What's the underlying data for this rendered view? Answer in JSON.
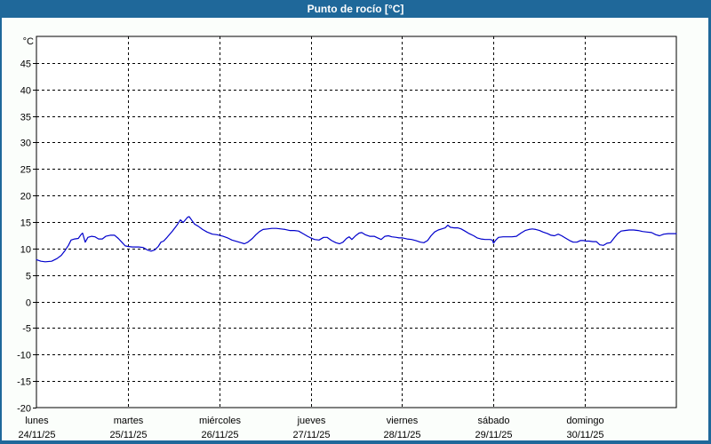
{
  "window": {
    "title": "Punto de rocío [°C]"
  },
  "colors": {
    "title_bar_bg": "#1f689a",
    "title_text": "#ffffff",
    "panel_bg": "#fbfefb",
    "plot_bg": "#ffffff",
    "axis_frame": "#000000",
    "gridline": "#000000",
    "line": "#0000cc",
    "label_text": "#000000"
  },
  "chart_data": {
    "type": "line",
    "title": "Punto de rocío [°C]",
    "ylabel": "°C",
    "unit_label": "°C",
    "ylim": [
      -20,
      50
    ],
    "xlim_hours": [
      0,
      168
    ],
    "grid": true,
    "legend": "none",
    "y_ticks": [
      45,
      40,
      35,
      30,
      25,
      20,
      15,
      10,
      5,
      0,
      -5,
      -10,
      -15,
      -20
    ],
    "x_days": [
      {
        "name": "lunes",
        "date": "24/11/25"
      },
      {
        "name": "martes",
        "date": "25/11/25"
      },
      {
        "name": "miércoles",
        "date": "26/11/25"
      },
      {
        "name": "jueves",
        "date": "27/11/25"
      },
      {
        "name": "viernes",
        "date": "28/11/25"
      },
      {
        "name": "sábado",
        "date": "29/11/25"
      },
      {
        "name": "domingo",
        "date": "30/11/25"
      }
    ],
    "series": [
      {
        "name": "Punto de rocío",
        "color": "#0000cc",
        "points_hours_degC": [
          [
            0,
            7.9
          ],
          [
            1.2,
            7.6
          ],
          [
            2.3,
            7.5
          ],
          [
            4,
            7.6
          ],
          [
            5.4,
            8.1
          ],
          [
            6.5,
            8.7
          ],
          [
            7.5,
            9.6
          ],
          [
            8.4,
            10.6
          ],
          [
            9.1,
            11.6
          ],
          [
            10,
            11.8
          ],
          [
            11,
            11.9
          ],
          [
            11.7,
            12.6
          ],
          [
            12.1,
            12.9
          ],
          [
            12.8,
            11.2
          ],
          [
            13.5,
            12.1
          ],
          [
            14.5,
            12.3
          ],
          [
            15.4,
            12.2
          ],
          [
            16.3,
            11.8
          ],
          [
            17.3,
            11.8
          ],
          [
            18.2,
            12.3
          ],
          [
            19.4,
            12.5
          ],
          [
            20.5,
            12.5
          ],
          [
            21.5,
            11.9
          ],
          [
            22.4,
            11.2
          ],
          [
            23.3,
            10.5
          ],
          [
            24,
            10.4
          ],
          [
            25.2,
            10.3
          ],
          [
            26.8,
            10.3
          ],
          [
            28,
            10.2
          ],
          [
            29.2,
            9.7
          ],
          [
            30.1,
            9.5
          ],
          [
            31,
            9.7
          ],
          [
            32,
            10.4
          ],
          [
            32.7,
            11.2
          ],
          [
            33.4,
            11.4
          ],
          [
            34.3,
            12.1
          ],
          [
            35.7,
            13.3
          ],
          [
            36.9,
            14.4
          ],
          [
            37.8,
            15.4
          ],
          [
            38.5,
            14.9
          ],
          [
            39.7,
            15.9
          ],
          [
            40.1,
            16.0
          ],
          [
            40.8,
            15.3
          ],
          [
            41.5,
            14.6
          ],
          [
            42.5,
            14.2
          ],
          [
            43.6,
            13.6
          ],
          [
            44.8,
            13.1
          ],
          [
            46.2,
            12.7
          ],
          [
            47.4,
            12.6
          ],
          [
            48,
            12.5
          ],
          [
            49,
            12.3
          ],
          [
            50.2,
            12.0
          ],
          [
            51.3,
            11.6
          ],
          [
            52.7,
            11.3
          ],
          [
            53.7,
            11.1
          ],
          [
            54.6,
            10.9
          ],
          [
            55.5,
            11.2
          ],
          [
            56.7,
            11.9
          ],
          [
            57.6,
            12.6
          ],
          [
            58.6,
            13.2
          ],
          [
            59.5,
            13.6
          ],
          [
            60.7,
            13.7
          ],
          [
            61.8,
            13.8
          ],
          [
            63,
            13.8
          ],
          [
            64.2,
            13.7
          ],
          [
            65.3,
            13.6
          ],
          [
            66.5,
            13.4
          ],
          [
            67.7,
            13.4
          ],
          [
            68.8,
            13.3
          ],
          [
            70,
            12.8
          ],
          [
            71.2,
            12.3
          ],
          [
            72,
            12.0
          ],
          [
            73,
            11.7
          ],
          [
            74.2,
            11.6
          ],
          [
            75.4,
            12.1
          ],
          [
            76.3,
            12.1
          ],
          [
            77.5,
            11.5
          ],
          [
            78.6,
            11.1
          ],
          [
            79.6,
            10.9
          ],
          [
            80.5,
            11.2
          ],
          [
            81.4,
            11.9
          ],
          [
            82.1,
            12.2
          ],
          [
            82.8,
            11.7
          ],
          [
            83.8,
            12.4
          ],
          [
            84.7,
            12.9
          ],
          [
            85.4,
            13.0
          ],
          [
            86.3,
            12.6
          ],
          [
            87.5,
            12.3
          ],
          [
            88.7,
            12.3
          ],
          [
            89.6,
            12.0
          ],
          [
            90.5,
            11.7
          ],
          [
            91.5,
            12.3
          ],
          [
            92.4,
            12.4
          ],
          [
            93.3,
            12.2
          ],
          [
            94.5,
            12.1
          ],
          [
            95.2,
            12.0
          ],
          [
            96.1,
            12.0
          ],
          [
            97.3,
            11.8
          ],
          [
            98.5,
            11.7
          ],
          [
            99.6,
            11.5
          ],
          [
            100.8,
            11.2
          ],
          [
            101.7,
            11.1
          ],
          [
            102.7,
            11.5
          ],
          [
            103.6,
            12.4
          ],
          [
            104.5,
            13.1
          ],
          [
            105.5,
            13.5
          ],
          [
            106.4,
            13.7
          ],
          [
            107.3,
            13.9
          ],
          [
            108,
            14.4
          ],
          [
            108.7,
            14.0
          ],
          [
            109.7,
            13.9
          ],
          [
            110.6,
            13.9
          ],
          [
            111.5,
            13.7
          ],
          [
            112.5,
            13.3
          ],
          [
            113.6,
            12.8
          ],
          [
            114.8,
            12.4
          ],
          [
            115.7,
            12.0
          ],
          [
            116.7,
            11.8
          ],
          [
            117.8,
            11.7
          ],
          [
            119,
            11.7
          ],
          [
            119.7,
            11.6
          ],
          [
            120,
            11.0
          ],
          [
            120.6,
            11.6
          ],
          [
            121.3,
            12.1
          ],
          [
            122.5,
            12.2
          ],
          [
            123.7,
            12.2
          ],
          [
            124.8,
            12.2
          ],
          [
            126,
            12.3
          ],
          [
            127.2,
            12.9
          ],
          [
            128.3,
            13.4
          ],
          [
            129.3,
            13.6
          ],
          [
            130.2,
            13.7
          ],
          [
            131.1,
            13.6
          ],
          [
            132.1,
            13.4
          ],
          [
            133,
            13.1
          ],
          [
            134.2,
            12.8
          ],
          [
            135.1,
            12.5
          ],
          [
            136,
            12.4
          ],
          [
            137,
            12.7
          ],
          [
            137.9,
            12.4
          ],
          [
            138.8,
            12.0
          ],
          [
            140,
            11.5
          ],
          [
            140.9,
            11.2
          ],
          [
            141.9,
            11.2
          ],
          [
            142.8,
            11.5
          ],
          [
            143.7,
            11.5
          ],
          [
            144.2,
            11.4
          ],
          [
            145.1,
            11.4
          ],
          [
            146.1,
            11.3
          ],
          [
            147,
            11.3
          ],
          [
            147.9,
            10.7
          ],
          [
            148.9,
            10.6
          ],
          [
            149.8,
            11.0
          ],
          [
            150.7,
            11.1
          ],
          [
            151.7,
            12.0
          ],
          [
            152.6,
            12.8
          ],
          [
            153.5,
            13.3
          ],
          [
            154.5,
            13.4
          ],
          [
            155.6,
            13.5
          ],
          [
            156.8,
            13.5
          ],
          [
            158,
            13.4
          ],
          [
            159.1,
            13.2
          ],
          [
            160.3,
            13.1
          ],
          [
            161.5,
            13.0
          ],
          [
            162.6,
            12.6
          ],
          [
            163.6,
            12.4
          ],
          [
            164.7,
            12.7
          ],
          [
            165.9,
            12.8
          ],
          [
            167.1,
            12.8
          ],
          [
            168,
            12.8
          ]
        ]
      }
    ]
  }
}
